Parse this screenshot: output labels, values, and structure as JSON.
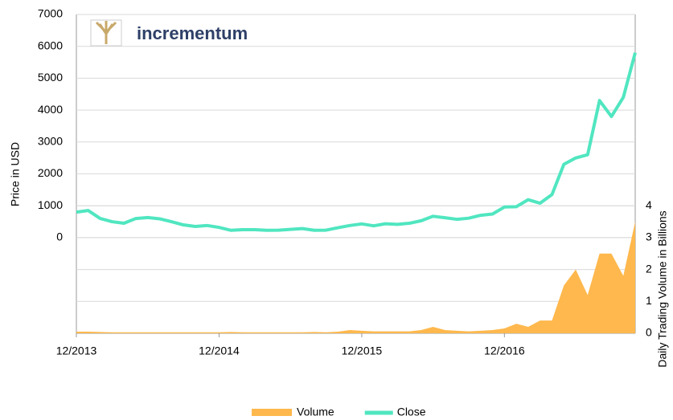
{
  "chart_data": {
    "type": "line",
    "logo": "incrementum",
    "ylabel": "Price in USD",
    "y2label": "Daily Trading Volume in Billions",
    "x": [
      "2013-12",
      "2014-01",
      "2014-02",
      "2014-03",
      "2014-04",
      "2014-05",
      "2014-06",
      "2014-07",
      "2014-08",
      "2014-09",
      "2014-10",
      "2014-11",
      "2014-12",
      "2015-01",
      "2015-02",
      "2015-03",
      "2015-04",
      "2015-05",
      "2015-06",
      "2015-07",
      "2015-08",
      "2015-09",
      "2015-10",
      "2015-11",
      "2015-12",
      "2016-01",
      "2016-02",
      "2016-03",
      "2016-04",
      "2016-05",
      "2016-06",
      "2016-07",
      "2016-08",
      "2016-09",
      "2016-10",
      "2016-11",
      "2016-12",
      "2017-01",
      "2017-02",
      "2017-03",
      "2017-04",
      "2017-05",
      "2017-06",
      "2017-07",
      "2017-08",
      "2017-09",
      "2017-10",
      "2017-11"
    ],
    "xlim": [
      "2013-12",
      "2017-11"
    ],
    "xticks": [
      {
        "value": "2013-12",
        "label": "12/2013"
      },
      {
        "value": "2014-12",
        "label": "12/2014"
      },
      {
        "value": "2015-12",
        "label": "12/2015"
      },
      {
        "value": "2016-12",
        "label": "12/2016"
      }
    ],
    "ylim": [
      -3000,
      7000
    ],
    "yticks": [
      0,
      1000,
      2000,
      3000,
      4000,
      5000,
      6000,
      7000
    ],
    "y2lim": [
      0,
      10
    ],
    "y2ticks": [
      0,
      1,
      2,
      3,
      4
    ],
    "grid": true,
    "series": [
      {
        "name": "Volume",
        "type": "area",
        "axis": "y2",
        "color": "#ffb84d",
        "values": [
          0.05,
          0.05,
          0.04,
          0.03,
          0.03,
          0.03,
          0.03,
          0.03,
          0.03,
          0.03,
          0.03,
          0.03,
          0.03,
          0.04,
          0.03,
          0.03,
          0.03,
          0.03,
          0.03,
          0.03,
          0.04,
          0.03,
          0.05,
          0.1,
          0.08,
          0.06,
          0.06,
          0.06,
          0.06,
          0.1,
          0.2,
          0.1,
          0.08,
          0.06,
          0.08,
          0.1,
          0.15,
          0.3,
          0.2,
          0.4,
          0.4,
          1.5,
          2.0,
          1.2,
          2.5,
          2.5,
          1.8,
          3.5
        ]
      },
      {
        "name": "Close",
        "type": "line",
        "axis": "y",
        "color": "#50e6c0",
        "values": [
          800,
          850,
          600,
          500,
          450,
          600,
          630,
          590,
          500,
          400,
          350,
          380,
          320,
          230,
          250,
          250,
          230,
          235,
          260,
          285,
          230,
          235,
          310,
          380,
          430,
          370,
          435,
          415,
          450,
          530,
          670,
          625,
          575,
          610,
          700,
          740,
          960,
          970,
          1190,
          1080,
          1350,
          2300,
          2500,
          2600,
          4300,
          3800,
          4400,
          5800
        ]
      }
    ]
  }
}
